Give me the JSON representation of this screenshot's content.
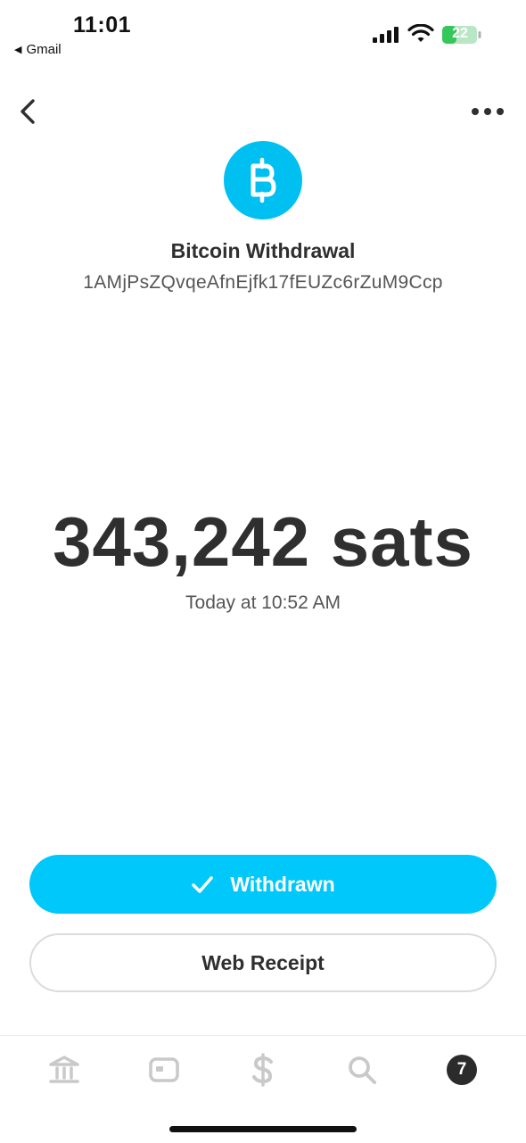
{
  "status_bar": {
    "time": "11:01",
    "back_app": "Gmail",
    "battery": "22"
  },
  "icons": {
    "back": "chevron-left-icon",
    "more": "ellipsis-icon",
    "bitcoin": "bitcoin-icon",
    "check": "checkmark-icon",
    "tabs": [
      "bank-icon",
      "card-icon",
      "dollar-icon",
      "search-icon",
      "activity-icon"
    ]
  },
  "transaction": {
    "title": "Bitcoin Withdrawal",
    "address": "1AMjPsZQvqeAfnEjfk17fEUZc6rZuM9Ccp",
    "amount": "343,242 sats",
    "date": "Today at 10:52 AM"
  },
  "buttons": {
    "withdrawn": "Withdrawn",
    "web_receipt": "Web Receipt"
  },
  "tabbar": {
    "activity_badge": "7"
  },
  "colors": {
    "accent": "#00c8fa",
    "text": "#2f2f2f",
    "battery_green": "#34c759"
  }
}
